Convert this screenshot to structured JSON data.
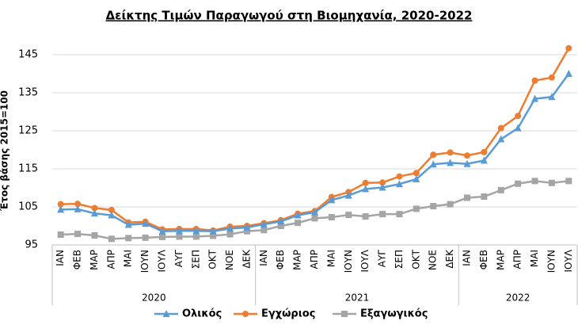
{
  "chart_data": {
    "type": "line",
    "title": "Δείκτης Τιμών Παραγωγού στη Βιομηχανία, 2020-2022",
    "y_label": "Έτος βάσης 2015=100",
    "groups": [
      {
        "name": "2020",
        "categories": [
          "ΙΑΝ",
          "ΦΕΒ",
          "ΜΑΡ",
          "ΑΠΡ",
          "ΜΑΙ",
          "ΙΟΥΝ",
          "ΙΟΥΛ",
          "ΑΥΓ",
          "ΣΕΠ",
          "ΟΚΤ",
          "ΝΟΕ",
          "ΔΕΚ"
        ]
      },
      {
        "name": "2021",
        "categories": [
          "ΙΑΝ",
          "ΦΕΒ",
          "ΜΑΡ",
          "ΑΠΡ",
          "ΜΑΙ",
          "ΙΟΥΝ",
          "ΙΟΥΛ",
          "ΑΥΓ",
          "ΣΕΠ",
          "ΟΚΤ",
          "ΝΟΕ",
          "ΔΕΚ"
        ]
      },
      {
        "name": "2022",
        "categories": [
          "ΙΑΝ",
          "ΦΕΒ",
          "ΜΑΡ",
          "ΑΠΡ",
          "ΜΑΙ",
          "ΙΟΥΝ",
          "ΙΟΥΛ"
        ]
      }
    ],
    "series": [
      {
        "name": "Ολικός",
        "color": "#5b9bd5",
        "marker": "triangle",
        "values": [
          104.3,
          104.4,
          103.3,
          102.8,
          100.3,
          100.6,
          98.6,
          98.7,
          98.7,
          98.6,
          99.3,
          99.6,
          100.4,
          101.2,
          102.8,
          103.6,
          106.8,
          108.0,
          109.7,
          110.1,
          111.0,
          112.3,
          116.2,
          116.6,
          116.3,
          117.2,
          122.8,
          125.7,
          133.4,
          133.9,
          140.0
        ]
      },
      {
        "name": "Εγχώριος",
        "color": "#ed7d31",
        "marker": "circle",
        "values": [
          105.7,
          105.8,
          104.7,
          104.2,
          100.9,
          101.1,
          99.1,
          99.2,
          99.2,
          98.8,
          99.8,
          100.0,
          100.7,
          101.5,
          103.2,
          103.9,
          107.6,
          108.9,
          111.3,
          111.4,
          113.0,
          113.9,
          118.7,
          119.3,
          118.5,
          119.4,
          125.7,
          128.9,
          138.2,
          139.0,
          146.7
        ]
      },
      {
        "name": "Εξαγωγικός",
        "color": "#a5a5a5",
        "marker": "square",
        "values": [
          97.7,
          97.9,
          97.5,
          96.6,
          96.8,
          96.9,
          97.1,
          97.2,
          97.2,
          97.4,
          97.8,
          98.6,
          98.9,
          100.0,
          100.8,
          102.0,
          102.3,
          102.9,
          102.5,
          103.1,
          103.1,
          104.5,
          105.2,
          105.7,
          107.4,
          107.7,
          109.4,
          111.1,
          111.8,
          111.3,
          111.8
        ]
      }
    ],
    "ylim": [
      95,
      150
    ],
    "yticks": [
      95,
      105,
      115,
      125,
      135,
      145
    ],
    "grid": true
  }
}
